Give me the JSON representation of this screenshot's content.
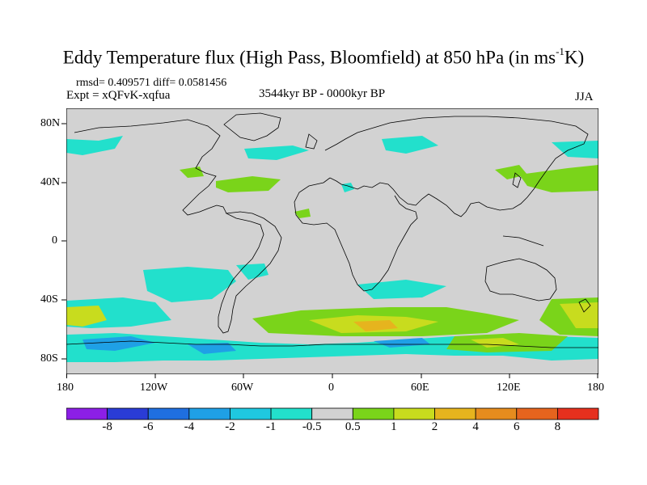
{
  "title": {
    "text": "Eddy Temperature flux (High Pass, Bloomfield) at 850 hPa (in ms",
    "sup": "-1",
    "tail": "K)"
  },
  "stats": "rmsd= 0.409571 diff= 0.0581456",
  "experiment": "Expt = xQFvK-xqfua",
  "period": "3544kyr BP - 0000kyr BP",
  "season": "JJA",
  "axes": {
    "y_ticks": [
      "80N",
      "40N",
      "0",
      "40S",
      "80S"
    ],
    "x_ticks": [
      "180",
      "120W",
      "60W",
      "0",
      "60E",
      "120E",
      "180"
    ]
  },
  "colorbar": {
    "labels": [
      "-8",
      "-6",
      "-4",
      "-2",
      "-1",
      "-0.5",
      "0.5",
      "1",
      "2",
      "4",
      "6",
      "8"
    ],
    "colors": [
      "#8c1fe6",
      "#2a3cd6",
      "#1f6fe0",
      "#1fa0e6",
      "#1fc8e0",
      "#22e0cc",
      "#d2d2d2",
      "#7ad41a",
      "#c8dc1e",
      "#e6b41e",
      "#e68c1e",
      "#e6641e",
      "#e6301e"
    ]
  },
  "colors": {
    "land_mask": "#d2d2d2",
    "coast": "#000000"
  }
}
